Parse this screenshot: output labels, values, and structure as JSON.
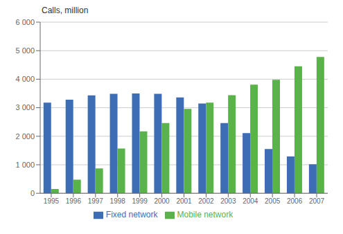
{
  "chart_data": {
    "type": "bar",
    "ylabel": "Calls, million",
    "categories": [
      "1995",
      "1996",
      "1997",
      "1998",
      "1999",
      "2000",
      "2001",
      "2002",
      "2003",
      "2004",
      "2005",
      "2006",
      "2007"
    ],
    "series": [
      {
        "name": "Fixed network",
        "color": "#3d6eb5",
        "values": [
          3180,
          3280,
          3430,
          3490,
          3500,
          3490,
          3360,
          3150,
          2460,
          2110,
          1550,
          1290,
          1020
        ]
      },
      {
        "name": "Mobile network",
        "color": "#5ab24a",
        "values": [
          150,
          480,
          870,
          1570,
          2170,
          2460,
          2960,
          3180,
          3440,
          3810,
          3980,
          4450,
          4780
        ]
      }
    ],
    "ylim": [
      0,
      6000
    ],
    "yticks": [
      0,
      {
        "value": 1000,
        "label": "1 000"
      },
      {
        "value": 2000,
        "label": "2 000"
      },
      {
        "value": 3000,
        "label": "3 000"
      },
      {
        "value": 4000,
        "label": "4 000"
      },
      {
        "value": 5000,
        "label": "5 000"
      },
      {
        "value": 6000,
        "label": "6 000"
      }
    ],
    "grid": true,
    "legend": "bottom"
  }
}
